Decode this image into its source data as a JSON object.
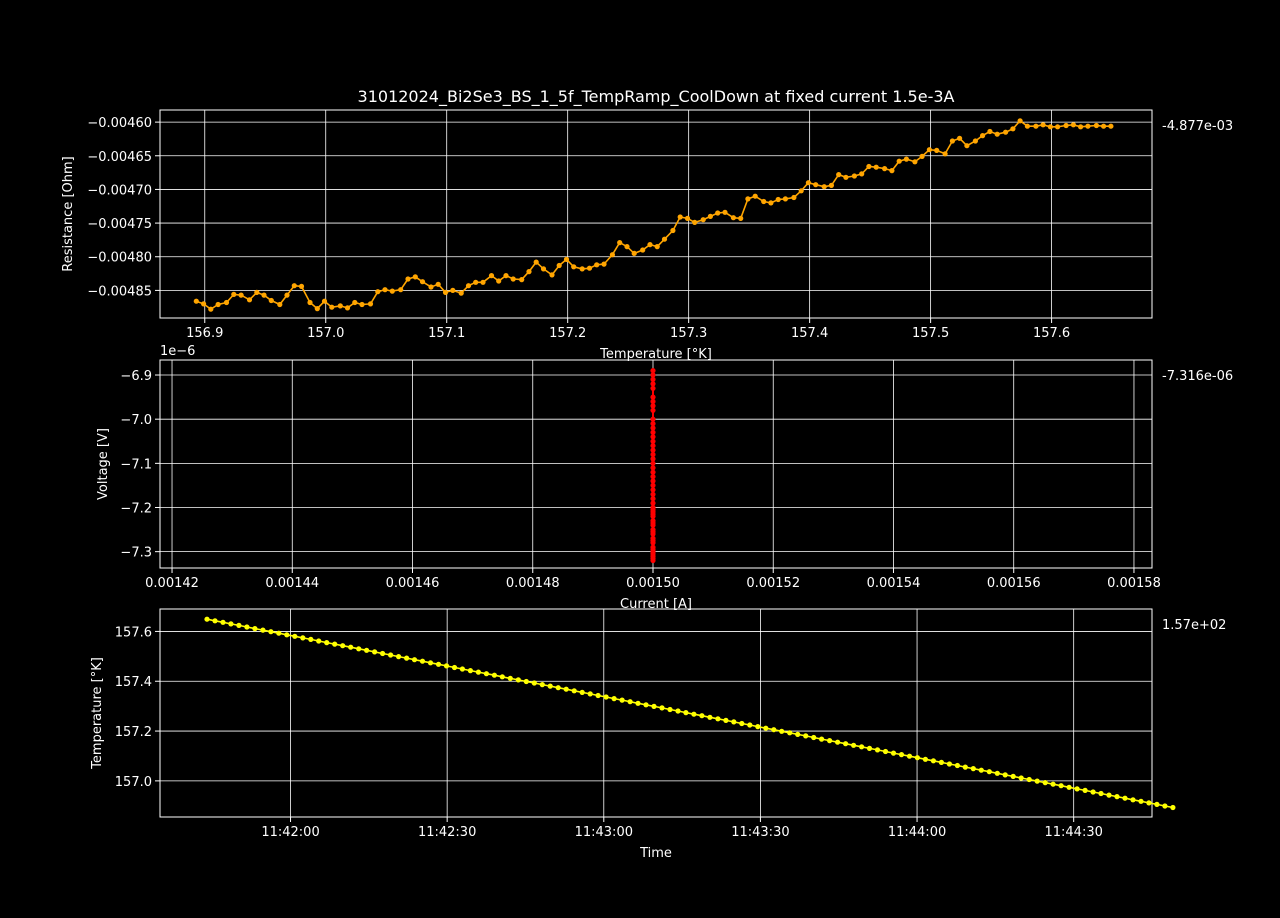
{
  "figure": {
    "title": "31012024_Bi2Se3_BS_1_5f_TempRamp_CoolDown at fixed current 1.5e-3A",
    "background": "#000000"
  },
  "chart_data": [
    {
      "type": "line",
      "name": "resistance-vs-temperature",
      "xlabel": "Temperature [°K]",
      "ylabel": "Resistance [Ohm]",
      "side_label": "-4.877e-03",
      "color": "#ffa500",
      "xlim": [
        156.863,
        157.683
      ],
      "ylim": [
        -0.004891,
        -0.004582
      ],
      "xticks": [
        156.9,
        157.0,
        157.1,
        157.2,
        157.3,
        157.4,
        157.5,
        157.6
      ],
      "xtick_labels": [
        "156.9",
        "157.0",
        "157.1",
        "157.2",
        "157.3",
        "157.4",
        "157.5",
        "157.6"
      ],
      "yticks": [
        -0.0046,
        -0.00465,
        -0.0047,
        -0.00475,
        -0.0048,
        -0.00485
      ],
      "ytick_labels": [
        "−0.00460",
        "−0.00465",
        "−0.00470",
        "−0.00475",
        "−0.00480",
        "−0.00485"
      ],
      "series": [
        {
          "x": [
            156.893,
            156.899,
            156.905,
            156.911,
            156.918,
            156.924,
            156.93,
            156.937,
            156.943,
            156.949,
            156.955,
            156.962,
            156.968,
            156.974,
            156.98,
            156.987,
            156.993,
            156.999,
            157.005,
            157.012,
            157.018,
            157.024,
            157.03,
            157.037,
            157.043,
            157.049,
            157.055,
            157.062,
            157.068,
            157.074,
            157.08,
            157.087,
            157.093,
            157.099,
            157.105,
            157.112,
            157.118,
            157.124,
            157.13,
            157.137,
            157.143,
            157.149,
            157.155,
            157.162,
            157.168,
            157.174,
            157.18,
            157.187,
            157.193,
            157.199,
            157.205,
            157.212,
            157.218,
            157.224,
            157.23,
            157.237,
            157.243,
            157.249,
            157.255,
            157.262,
            157.268,
            157.274,
            157.28,
            157.287,
            157.293,
            157.299,
            157.305,
            157.312,
            157.318,
            157.324,
            157.33,
            157.337,
            157.343,
            157.349,
            157.355,
            157.362,
            157.368,
            157.374,
            157.38,
            157.387,
            157.393,
            157.399,
            157.405,
            157.412,
            157.418,
            157.424,
            157.43,
            157.437,
            157.443,
            157.449,
            157.455,
            157.462,
            157.468,
            157.474,
            157.48,
            157.487,
            157.493,
            157.499,
            157.505,
            157.512,
            157.518,
            157.524,
            157.53,
            157.537,
            157.543,
            157.549,
            157.555,
            157.562,
            157.568,
            157.574,
            157.58,
            157.587,
            157.593,
            157.599,
            157.605,
            157.612,
            157.618,
            157.624,
            157.63,
            157.637,
            157.643,
            157.649
          ],
          "y": [
            -0.004866,
            -0.00487,
            -0.004878,
            -0.004871,
            -0.004868,
            -0.004856,
            -0.004857,
            -0.004864,
            -0.004853,
            -0.004857,
            -0.004865,
            -0.004871,
            -0.004857,
            -0.004843,
            -0.004844,
            -0.004868,
            -0.004877,
            -0.004866,
            -0.004875,
            -0.004873,
            -0.004876,
            -0.004868,
            -0.004871,
            -0.00487,
            -0.004852,
            -0.004849,
            -0.004851,
            -0.004849,
            -0.004833,
            -0.00483,
            -0.004837,
            -0.004845,
            -0.004841,
            -0.004853,
            -0.00485,
            -0.004854,
            -0.004843,
            -0.004838,
            -0.004838,
            -0.004828,
            -0.004836,
            -0.004828,
            -0.004833,
            -0.004834,
            -0.004822,
            -0.004808,
            -0.004818,
            -0.004827,
            -0.004813,
            -0.004804,
            -0.004815,
            -0.004818,
            -0.004817,
            -0.004812,
            -0.004811,
            -0.004797,
            -0.004779,
            -0.004785,
            -0.004795,
            -0.00479,
            -0.004782,
            -0.004785,
            -0.004774,
            -0.004761,
            -0.004741,
            -0.004743,
            -0.004749,
            -0.004745,
            -0.00474,
            -0.004735,
            -0.004734,
            -0.004742,
            -0.004743,
            -0.004714,
            -0.00471,
            -0.004718,
            -0.00472,
            -0.004715,
            -0.004714,
            -0.004712,
            -0.004702,
            -0.00469,
            -0.004693,
            -0.004696,
            -0.004694,
            -0.004678,
            -0.004682,
            -0.00468,
            -0.004677,
            -0.004666,
            -0.004667,
            -0.004669,
            -0.004672,
            -0.004658,
            -0.004655,
            -0.004659,
            -0.004651,
            -0.004641,
            -0.004642,
            -0.004647,
            -0.004628,
            -0.004624,
            -0.004635,
            -0.004628,
            -0.00462,
            -0.004614,
            -0.004618,
            -0.004615,
            -0.00461,
            -0.004598,
            -0.004606,
            -0.004606,
            -0.004604,
            -0.004607,
            -0.004607,
            -0.004605,
            -0.004604,
            -0.004607,
            -0.004606,
            -0.004605,
            -0.004606,
            -0.004606
          ]
        }
      ],
      "grid": true
    },
    {
      "type": "scatter",
      "name": "voltage-vs-current",
      "xlabel": "Current [A]",
      "ylabel": "Voltage [V]",
      "y_offset_label": "1e−6",
      "side_label": "-7.316e-06",
      "color": "#ff0000",
      "xlim": [
        0.001418,
        0.001583
      ],
      "ylim": [
        -7.337,
        -6.866
      ],
      "xticks": [
        0.00142,
        0.00144,
        0.00146,
        0.00148,
        0.0015,
        0.00152,
        0.00154,
        0.00156,
        0.00158
      ],
      "xtick_labels": [
        "0.00142",
        "0.00144",
        "0.00146",
        "0.00148",
        "0.00150",
        "0.00152",
        "0.00154",
        "0.00156",
        "0.00158"
      ],
      "yticks": [
        -6.9,
        -7.0,
        -7.1,
        -7.2,
        -7.3
      ],
      "ytick_labels": [
        "−6.9",
        "−7.0",
        "−7.1",
        "−7.2",
        "−7.3"
      ],
      "series": [
        {
          "x": [
            0.0015,
            0.0015,
            0.0015,
            0.0015,
            0.0015,
            0.0015,
            0.0015,
            0.0015,
            0.0015,
            0.0015,
            0.0015,
            0.0015,
            0.0015,
            0.0015,
            0.0015,
            0.0015,
            0.0015,
            0.0015,
            0.0015,
            0.0015,
            0.0015,
            0.0015,
            0.0015,
            0.0015,
            0.0015,
            0.0015,
            0.0015,
            0.0015,
            0.0015,
            0.0015,
            0.0015,
            0.0015,
            0.0015,
            0.0015,
            0.0015,
            0.0015,
            0.0015,
            0.0015,
            0.0015,
            0.0015,
            0.0015,
            0.0015,
            0.0015,
            0.0015,
            0.0015,
            0.0015,
            0.0015,
            0.0015,
            0.0015,
            0.0015
          ],
          "y": [
            -6.89,
            -6.9,
            -6.91,
            -6.92,
            -6.93,
            -6.95,
            -6.96,
            -6.98,
            -7.0,
            -7.01,
            -7.02,
            -7.03,
            -7.05,
            -7.06,
            -7.07,
            -7.09,
            -7.1,
            -7.11,
            -7.12,
            -7.13,
            -7.14,
            -7.16,
            -7.17,
            -7.18,
            -7.19,
            -7.2,
            -7.21,
            -7.22,
            -7.23,
            -7.24,
            -7.25,
            -7.26,
            -7.27,
            -7.28,
            -7.29,
            -7.3,
            -7.31,
            -7.32,
            -6.97,
            -7.04,
            -7.08,
            -7.15,
            -7.205,
            -7.215,
            -7.235,
            -7.255,
            -7.275,
            -7.295,
            -7.305,
            -7.315
          ]
        }
      ],
      "grid": true
    },
    {
      "type": "line",
      "name": "temperature-vs-time",
      "xlabel": "Time",
      "ylabel": "Temperature [°K]",
      "side_label": "1.57e+02",
      "color": "#ffff00",
      "xlim": [
        "11:41:35",
        "11:44:45"
      ],
      "ylim": [
        156.855,
        157.69
      ],
      "xticks": [
        "11:42:00",
        "11:42:30",
        "11:43:00",
        "11:43:30",
        "11:44:00",
        "11:44:30"
      ],
      "yticks": [
        157.0,
        157.2,
        157.4,
        157.6
      ],
      "ytick_labels": [
        "157.0",
        "157.2",
        "157.4",
        "157.6"
      ],
      "series": [
        {
          "start": "11:41:44",
          "end": "11:44:49",
          "count": 122,
          "y_start": 157.649,
          "y_end": 156.893
        }
      ],
      "grid": true
    }
  ]
}
